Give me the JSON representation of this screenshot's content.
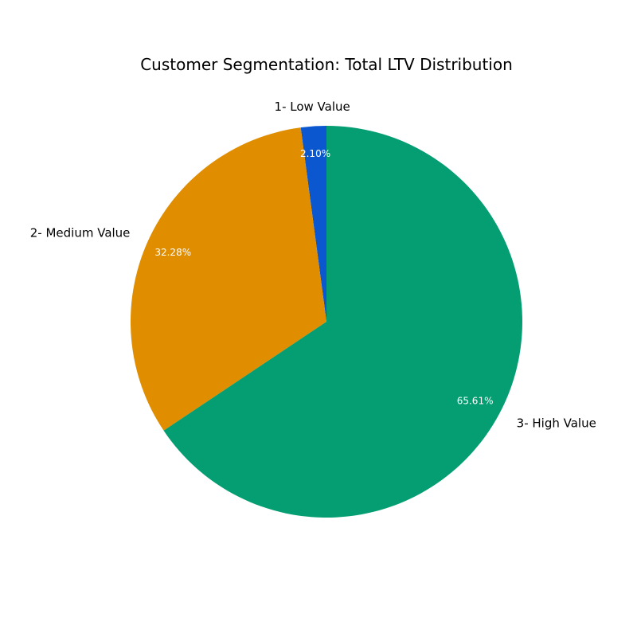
{
  "chart_data": {
    "type": "pie",
    "title": "Customer Segmentation: Total LTV Distribution",
    "labels": [
      "1- Low Value",
      "2- Medium Value",
      "3- High Value"
    ],
    "values": [
      2.1,
      32.28,
      65.61
    ],
    "percent_labels": [
      "2.10%",
      "32.28%",
      "65.61%"
    ],
    "colors": [
      "#0b57d0",
      "#e08e00",
      "#049e72"
    ],
    "start_angle_deg": 90,
    "direction": "counterclockwise"
  }
}
